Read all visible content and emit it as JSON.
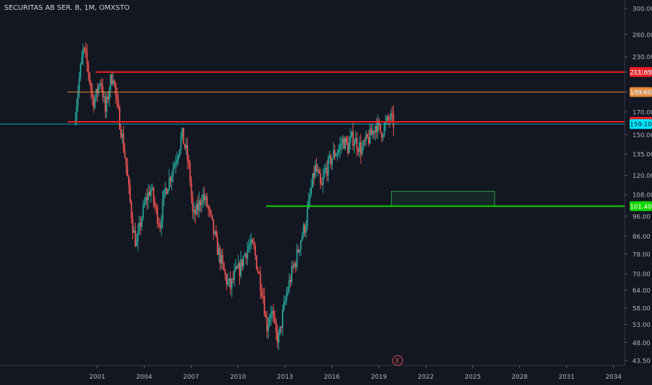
{
  "chart_data": {
    "type": "candlestick",
    "title": "SECURITAS AB SER. B, 1M, OMXSTO",
    "scale": "log",
    "ylim": [
      42,
      310
    ],
    "y_ticks": [
      43.5,
      48.0,
      53.0,
      58.0,
      64.0,
      70.0,
      78.0,
      86.0,
      96.0,
      108.0,
      120.0,
      135.0,
      150.0,
      170.0,
      189.6,
      211.65,
      230.0,
      260.0,
      300.0
    ],
    "y_tick_labels": [
      "43.50",
      "48.00",
      "53.00",
      "58.00",
      "64.00",
      "70.00",
      "78.00",
      "86.00",
      "96.00",
      "108.00",
      "120.00",
      "135.00",
      "150.00",
      "170.00",
      "189.60",
      "211.65",
      "230.00",
      "260.00",
      "300.00"
    ],
    "x_ticks": [
      2001,
      2004,
      2007,
      2010,
      2013,
      2016,
      2019,
      2022,
      2025,
      2028,
      2031,
      2034
    ],
    "x_tick_labels": [
      "2001",
      "2004",
      "2007",
      "2010",
      "2013",
      "2016",
      "2019",
      "2022",
      "2025",
      "2028",
      "2031",
      "2034"
    ],
    "xlim": [
      1999.0,
      2035.5
    ],
    "price_path": [
      [
        1999.6,
        160
      ],
      [
        1999.9,
        200
      ],
      [
        2000.2,
        240
      ],
      [
        2000.5,
        215
      ],
      [
        2000.8,
        180
      ],
      [
        2001.0,
        185
      ],
      [
        2001.3,
        205
      ],
      [
        2001.6,
        170
      ],
      [
        2001.9,
        200
      ],
      [
        2002.1,
        210
      ],
      [
        2002.3,
        180
      ],
      [
        2002.6,
        155
      ],
      [
        2002.9,
        130
      ],
      [
        2003.1,
        110
      ],
      [
        2003.4,
        88
      ],
      [
        2003.6,
        82
      ],
      [
        2003.9,
        95
      ],
      [
        2004.2,
        105
      ],
      [
        2004.5,
        112
      ],
      [
        2004.8,
        100
      ],
      [
        2005.1,
        92
      ],
      [
        2005.4,
        110
      ],
      [
        2005.7,
        118
      ],
      [
        2006.0,
        128
      ],
      [
        2006.3,
        140
      ],
      [
        2006.5,
        150
      ],
      [
        2006.8,
        135
      ],
      [
        2007.0,
        120
      ],
      [
        2007.2,
        95
      ],
      [
        2007.5,
        100
      ],
      [
        2007.8,
        108
      ],
      [
        2008.1,
        102
      ],
      [
        2008.4,
        92
      ],
      [
        2008.7,
        82
      ],
      [
        2009.0,
        75
      ],
      [
        2009.3,
        68
      ],
      [
        2009.6,
        65
      ],
      [
        2009.9,
        70
      ],
      [
        2010.2,
        72
      ],
      [
        2010.5,
        78
      ],
      [
        2010.8,
        82
      ],
      [
        2011.1,
        80
      ],
      [
        2011.4,
        70
      ],
      [
        2011.7,
        62
      ],
      [
        2011.9,
        52
      ],
      [
        2012.2,
        58
      ],
      [
        2012.5,
        50
      ],
      [
        2012.7,
        49
      ],
      [
        2012.9,
        55
      ],
      [
        2013.2,
        63
      ],
      [
        2013.5,
        70
      ],
      [
        2013.8,
        76
      ],
      [
        2014.1,
        85
      ],
      [
        2014.4,
        92
      ],
      [
        2014.7,
        108
      ],
      [
        2015.0,
        125
      ],
      [
        2015.2,
        120
      ],
      [
        2015.4,
        110
      ],
      [
        2015.6,
        122
      ],
      [
        2015.9,
        128
      ],
      [
        2016.2,
        135
      ],
      [
        2016.5,
        138
      ],
      [
        2016.8,
        146
      ],
      [
        2017.1,
        140
      ],
      [
        2017.4,
        148
      ],
      [
        2017.7,
        143
      ],
      [
        2018.0,
        138
      ],
      [
        2018.3,
        145
      ],
      [
        2018.6,
        150
      ],
      [
        2018.9,
        160
      ],
      [
        2019.2,
        152
      ],
      [
        2019.5,
        158
      ],
      [
        2019.8,
        165
      ],
      [
        2020.0,
        160
      ]
    ],
    "horizontal_lines": [
      {
        "value": 211.65,
        "color": "#f21c23",
        "label": "211.65",
        "x_from": 2000.9
      },
      {
        "value": 189.6,
        "color": "#e88a36",
        "label": "189.60",
        "x_from": 1999.1
      },
      {
        "value": 161.1,
        "color": "#f21c23",
        "label": "161.10",
        "x_from": 1999.1
      },
      {
        "value": 101.4,
        "color": "#12d400",
        "label": "101.40",
        "x_from": 2011.8
      }
    ],
    "current_price": {
      "value": 159.1,
      "label": "159.10",
      "color": "#00e5ff"
    },
    "zone": {
      "x_from": 2019.8,
      "x_to": 2026.4,
      "y_from": 101.4,
      "y_to": 110.0,
      "color": "#1f7a3a"
    },
    "event_marker": {
      "x": 2020.2,
      "label": "E",
      "color": "#f0555c"
    },
    "colors": {
      "up": "#26a69a",
      "down": "#ef5350",
      "background": "#131722",
      "axis_text": "#b2b5be",
      "grid": "#2a2e39"
    }
  }
}
